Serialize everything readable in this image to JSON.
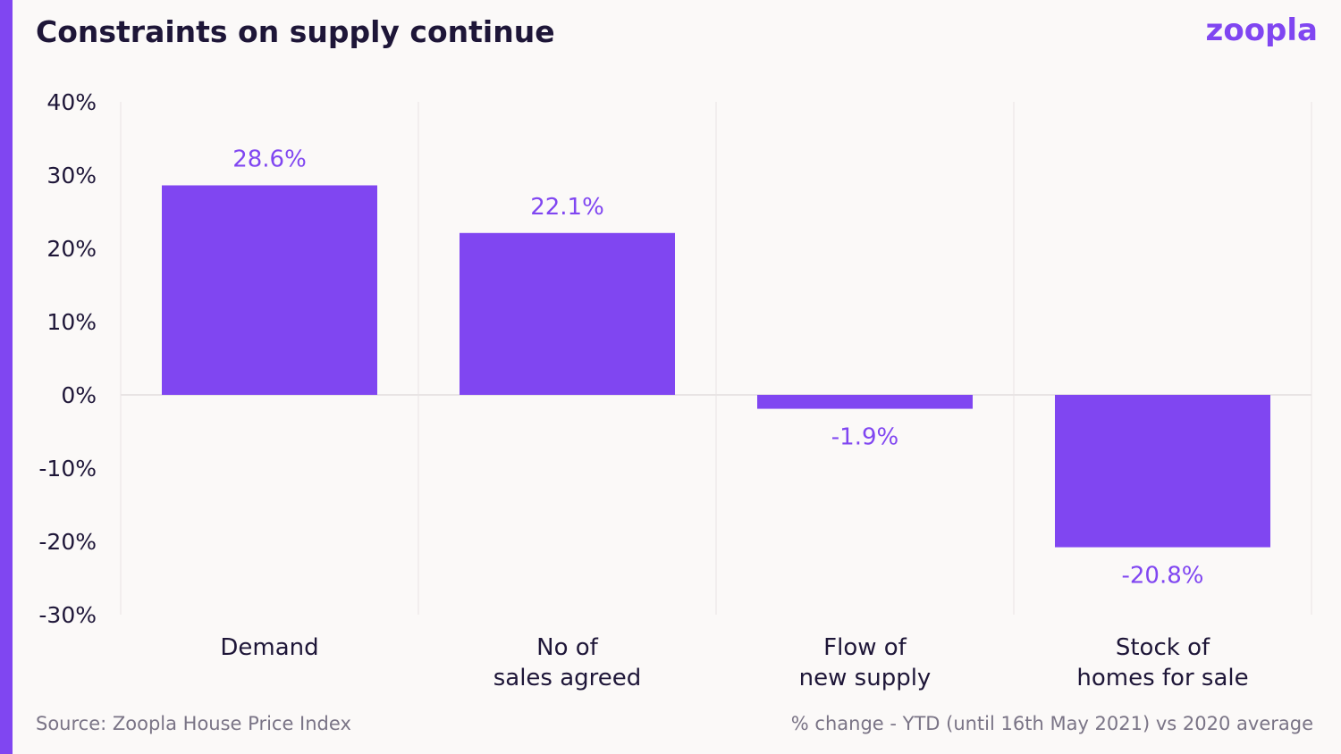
{
  "header": {
    "title": "Constraints on supply continue",
    "logo_text": "zoopla"
  },
  "footer": {
    "source": "Source: Zoopla House Price Index",
    "note": "% change - YTD (until 16th May 2021) vs 2020 average"
  },
  "colors": {
    "accent": "#8046f1",
    "text": "#1e1638",
    "muted": "#7a7486",
    "background": "#fbf9f8",
    "grid": "#e8e4e4"
  },
  "chart_data": {
    "type": "bar",
    "title": "Constraints on supply continue",
    "xlabel": "",
    "ylabel": "",
    "categories": [
      [
        "Demand"
      ],
      [
        "No of",
        "sales agreed"
      ],
      [
        "Flow of",
        "new supply"
      ],
      [
        "Stock of",
        "homes for sale"
      ]
    ],
    "values": [
      28.6,
      22.1,
      -1.9,
      -20.8
    ],
    "data_labels": [
      "28.6%",
      "22.1%",
      "-1.9%",
      "-20.8%"
    ],
    "ylim": [
      -30,
      40
    ],
    "yticks": [
      40,
      30,
      20,
      10,
      0,
      -10,
      -20,
      -30
    ],
    "ytick_labels": [
      "40%",
      "30%",
      "20%",
      "10%",
      "0%",
      "-10%",
      "-20%",
      "-30%"
    ],
    "grid": "vertical category separators",
    "legend": "none"
  }
}
